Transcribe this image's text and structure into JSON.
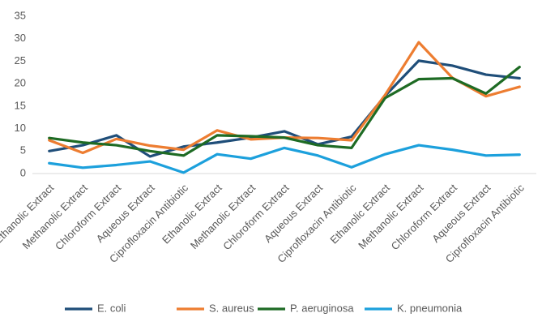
{
  "chart_data": {
    "type": "line",
    "categories": [
      "Ethanolic Extract",
      "Methanolic Extract",
      "Chloroform Extract",
      "Aqueous Extract",
      "Ciprofloxacin Antibiotic",
      "Ethanolic Extract",
      "Methanolic Extract",
      "Chloroform Extract",
      "Aqueous Extract",
      "Ciprofloxacin Antibiotic",
      "Ethanolic Extract",
      "Methanolic Extract",
      "Chloroform Extract",
      "Aqueous Extract",
      "Ciprofloxacin Antibiotic"
    ],
    "series": [
      {
        "name": "E. coli",
        "color": "#1f4e79",
        "values": [
          5.0,
          6.3,
          8.5,
          3.8,
          6.0,
          6.9,
          8.0,
          9.4,
          6.5,
          8.2,
          17.3,
          25.1,
          24.0,
          22.0,
          21.2
        ]
      },
      {
        "name": "S. aureus",
        "color": "#ed7d31",
        "values": [
          7.4,
          4.6,
          7.7,
          6.2,
          5.3,
          9.6,
          7.6,
          8.0,
          7.9,
          7.4,
          17.5,
          29.2,
          21.3,
          17.2,
          19.3
        ]
      },
      {
        "name": "P. aeruginosa",
        "color": "#1e6b24",
        "values": [
          7.9,
          6.9,
          6.3,
          5.0,
          4.0,
          8.5,
          8.3,
          8.0,
          6.3,
          5.7,
          16.8,
          21.0,
          21.2,
          17.8,
          23.7
        ]
      },
      {
        "name": "K. pneumonia",
        "color": "#1ca0dc",
        "values": [
          2.3,
          1.3,
          1.9,
          2.7,
          0.2,
          4.3,
          3.3,
          5.7,
          4.0,
          1.4,
          4.3,
          6.3,
          5.3,
          4.0,
          4.2
        ]
      }
    ],
    "ylim": [
      0,
      35
    ],
    "yticks": [
      0,
      5,
      10,
      15,
      20,
      25,
      30,
      35
    ],
    "grid": false,
    "legend": "bottom"
  }
}
